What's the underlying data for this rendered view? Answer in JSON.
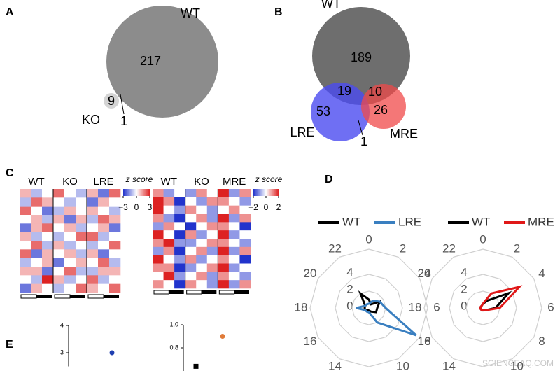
{
  "panel_labels": [
    "A",
    "B",
    "C",
    "D",
    "E"
  ],
  "watermark": "SCIENCEAQ.COM",
  "chart_data": [
    {
      "type": "venn",
      "sets": [
        {
          "name": "WT",
          "color": "#8c8c8c"
        },
        {
          "name": "KO",
          "color": "#d4d4d4"
        }
      ],
      "values": [
        217,
        9,
        1
      ]
    },
    {
      "type": "venn",
      "sets": [
        {
          "name": "WT",
          "color": "#6e6e6e"
        },
        {
          "name": "LRE",
          "color": "#4b4bf0"
        },
        {
          "name": "MRE",
          "color": "#f04a4a"
        }
      ],
      "values": [
        189,
        19,
        10,
        53,
        26,
        1
      ]
    },
    {
      "type": "heatmap",
      "groups": [
        "WT",
        "KO",
        "LRE"
      ],
      "colorbar": {
        "title": "z score",
        "lim": [
          -3,
          3
        ],
        "ticks": [
          {
            "value": -3,
            "label": "−3"
          },
          0,
          3
        ]
      },
      "values": [
        [
          1,
          -1,
          0,
          2,
          0,
          -1,
          1,
          -2,
          2
        ],
        [
          -1,
          2,
          1,
          0,
          -1,
          0,
          -2,
          1,
          0
        ],
        [
          2,
          0,
          -2,
          -1,
          1,
          0,
          1,
          0,
          -1
        ],
        [
          0,
          1,
          -1,
          1,
          -2,
          1,
          -1,
          2,
          1
        ],
        [
          -2,
          1,
          2,
          0,
          1,
          -1,
          0,
          1,
          -2
        ],
        [
          1,
          -1,
          0,
          -1,
          0,
          2,
          2,
          -1,
          0
        ],
        [
          0,
          2,
          -1,
          1,
          -1,
          0,
          -1,
          0,
          2
        ],
        [
          2,
          -2,
          1,
          0,
          1,
          -1,
          1,
          -2,
          0
        ],
        [
          -1,
          0,
          1,
          -2,
          0,
          1,
          0,
          2,
          -1
        ],
        [
          1,
          1,
          -2,
          0,
          2,
          -1,
          -1,
          1,
          1
        ],
        [
          0,
          -1,
          3,
          1,
          -1,
          0,
          2,
          -1,
          0
        ],
        [
          -2,
          1,
          0,
          -1,
          0,
          2,
          1,
          0,
          2
        ]
      ]
    },
    {
      "type": "heatmap",
      "groups": [
        "WT",
        "KO",
        "MRE"
      ],
      "colorbar": {
        "title": "z score",
        "lim": [
          -2,
          2
        ],
        "ticks": [
          {
            "value": -2,
            "label": "−2"
          },
          0,
          2
        ]
      },
      "values": [
        [
          1,
          -1,
          0,
          -1,
          1,
          0,
          2,
          -1,
          1
        ],
        [
          2,
          1,
          -2,
          0,
          -1,
          1,
          1,
          0,
          -1
        ],
        [
          2,
          0,
          -1,
          1,
          0,
          -1,
          0,
          1,
          0
        ],
        [
          1,
          -1,
          -2,
          0,
          1,
          -1,
          2,
          -1,
          1
        ],
        [
          -1,
          1,
          0,
          -2,
          0,
          1,
          1,
          0,
          -2
        ],
        [
          2,
          0,
          -2,
          1,
          -1,
          0,
          2,
          -1,
          0
        ],
        [
          1,
          2,
          -1,
          -1,
          0,
          1,
          1,
          0,
          -1
        ],
        [
          -1,
          1,
          -2,
          0,
          1,
          -1,
          2,
          -1,
          1
        ],
        [
          2,
          0,
          -1,
          1,
          -1,
          0,
          1,
          0,
          -2
        ],
        [
          1,
          1,
          -2,
          -1,
          0,
          1,
          2,
          -1,
          0
        ],
        [
          0,
          2,
          -1,
          0,
          1,
          -1,
          1,
          0,
          -1
        ],
        [
          1,
          0,
          -2,
          1,
          0,
          -1,
          2,
          -1,
          1
        ]
      ]
    },
    {
      "type": "radar",
      "angles": [
        0,
        2,
        4,
        6,
        8,
        10,
        12,
        14,
        16,
        18,
        20,
        22
      ],
      "alim": [
        0,
        24
      ],
      "rlim": [
        0,
        7
      ],
      "rticks": [
        0,
        2,
        4
      ],
      "series": [
        {
          "name": "WT",
          "color": "#000000",
          "values": [
            1,
            0.5,
            1.5,
            1,
            1,
            0.5,
            0.3,
            0.3,
            0.5,
            0.5,
            0.5,
            2
          ]
        },
        {
          "name": "LRE",
          "color": "#3a7fc0",
          "values": [
            0.5,
            1,
            1.5,
            2,
            6.5,
            2,
            0.5,
            0.5,
            0.5,
            1.5,
            0.5,
            0.5
          ]
        }
      ]
    },
    {
      "type": "radar",
      "angles": [
        0,
        2,
        4,
        6,
        8,
        10,
        12,
        14,
        16,
        18,
        20,
        22
      ],
      "alim": [
        0,
        24
      ],
      "rlim": [
        0,
        7
      ],
      "rticks": [
        0,
        2,
        4
      ],
      "series": [
        {
          "name": "WT",
          "color": "#000000",
          "values": [
            0.5,
            1,
            3.5,
            1.5,
            0.5,
            0.3,
            0.3,
            0.3,
            0.3,
            0.3,
            0.3,
            0.3
          ]
        },
        {
          "name": "MRE",
          "color": "#e01818",
          "values": [
            0.5,
            2,
            5,
            2,
            0.5,
            0.3,
            0.3,
            0.3,
            0.3,
            0.3,
            0.3,
            0.3
          ]
        }
      ]
    },
    {
      "type": "scatter",
      "ylim": [
        2.5,
        4
      ],
      "yticks": [
        4,
        3
      ],
      "series": [
        {
          "color": "#1f3fb0",
          "marker": "circle",
          "values": [
            3
          ]
        }
      ]
    },
    {
      "type": "scatter",
      "ylim": [
        0.6,
        1
      ],
      "yticks": [
        {
          "value": 1,
          "label": "1.0"
        },
        0.8
      ],
      "series": [
        {
          "color": "#000000",
          "marker": "square",
          "values": [
            0.64
          ]
        },
        {
          "color": "#e07b39",
          "marker": "circle",
          "values": [
            0.9
          ]
        }
      ]
    }
  ]
}
